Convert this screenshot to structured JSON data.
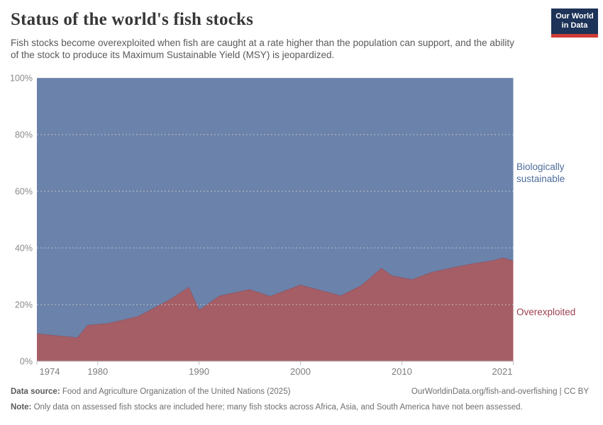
{
  "header": {
    "title": "Status of the world's fish stocks",
    "subtitle": "Fish stocks become overexploited when fish are caught at a rate higher than the population can support, and the ability of the stock to produce its Maximum Sustainable Yield (MSY) is jeopardized.",
    "logo": {
      "line1": "Our World",
      "line2": "in Data",
      "bg_color": "#1d3358",
      "stripe_color": "#cf3b35",
      "text_color": "#ffffff"
    }
  },
  "chart_data": {
    "type": "area",
    "stacked": true,
    "percent_scale": true,
    "title": "Status of the world's fish stocks",
    "xlabel": "",
    "ylabel": "",
    "y_unit": "%",
    "ylim": [
      0,
      100
    ],
    "xlim": [
      1974,
      2021
    ],
    "y_ticks": [
      0,
      20,
      40,
      60,
      80,
      100
    ],
    "x_ticks": [
      1974,
      1980,
      1990,
      2000,
      2010,
      2021
    ],
    "grid": "horizontal-dashed",
    "legend_position": "right-of-plot",
    "x": [
      1974,
      1978,
      1979,
      1981,
      1984,
      1987,
      1989,
      1990,
      1992,
      1995,
      1997,
      2000,
      2004,
      2006,
      2008,
      2009,
      2011,
      2013,
      2015,
      2017,
      2019,
      2020,
      2021
    ],
    "series": [
      {
        "name": "Overexploited",
        "fill_color": "#a55e66",
        "edge_color": "#8e4a53",
        "label_color": "#9e4150",
        "values": [
          9.7,
          8.3,
          12.7,
          13.3,
          15.8,
          21.5,
          26.1,
          18.0,
          23.0,
          25.3,
          22.9,
          26.9,
          23.1,
          26.7,
          32.8,
          30.2,
          28.8,
          31.4,
          33.0,
          34.4,
          35.5,
          36.5,
          35.4
        ]
      },
      {
        "name": "Biologically sustainable",
        "fill_color": "#6b82ab",
        "edge_color": "#5c749e",
        "label_color": "#4e6d9c",
        "values": [
          90.3,
          91.7,
          87.3,
          86.7,
          84.2,
          78.5,
          73.9,
          82.0,
          77.0,
          74.7,
          77.1,
          73.1,
          76.9,
          73.3,
          67.2,
          69.8,
          71.2,
          68.6,
          67.0,
          65.6,
          64.5,
          63.5,
          64.6
        ]
      }
    ],
    "axis_text_color": "#8a8a8a",
    "grid_color": "#cdcdcd",
    "axis_line_color": "#bdbdbd"
  },
  "footer": {
    "source_label": "Data source:",
    "source_text": "Food and Agriculture Organization of the United Nations (2025)",
    "citation": "OurWorldinData.org/fish-and-overfishing | CC BY",
    "note_label": "Note:",
    "note_text": "Only data on assessed fish stocks are included here; many fish stocks across Africa, Asia, and South America have not been assessed."
  }
}
